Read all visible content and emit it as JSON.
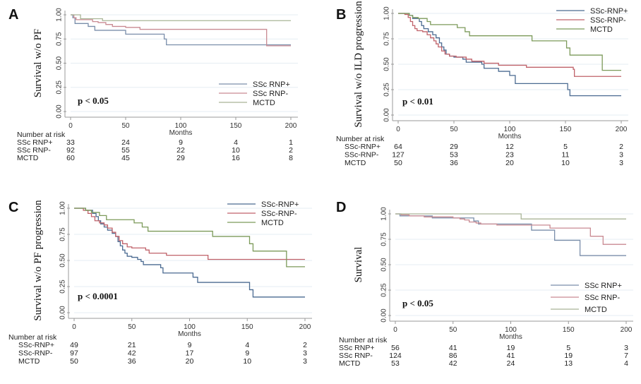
{
  "colors": {
    "SSc_RNP_pos": "#4a6a91",
    "SSc_RNP_neg": "#c0626a",
    "MCTD": "#7c9a5a",
    "A_pos": "#7a8eaa",
    "A_neg": "#c98a92",
    "A_mctd": "#a9b597"
  },
  "chart_data": [
    {
      "panel": "A",
      "type": "line",
      "subtype": "kaplan-meier",
      "title": "",
      "xlabel": "Months",
      "ylabel": "Survival w/o PF",
      "xlim": [
        0,
        200
      ],
      "ylim": [
        0,
        1
      ],
      "xticks": [
        "0",
        "50",
        "100",
        "150",
        "200"
      ],
      "yticks": [
        "0.00",
        "0.25",
        "0.50",
        "0.75",
        "1.00"
      ],
      "grid": true,
      "legend_position": "bottom-right",
      "annotation": "p < 0.05",
      "series": [
        {
          "name": "SSc RNP+",
          "color_key": "A_pos",
          "steps": [
            [
              0,
              1.0
            ],
            [
              2,
              0.97
            ],
            [
              4,
              0.91
            ],
            [
              16,
              0.88
            ],
            [
              22,
              0.84
            ],
            [
              50,
              0.8
            ],
            [
              85,
              0.75
            ],
            [
              87,
              0.69
            ],
            [
              200,
              0.69
            ]
          ]
        },
        {
          "name": "SSc RNP-",
          "color_key": "A_neg",
          "steps": [
            [
              0,
              1.0
            ],
            [
              3,
              0.97
            ],
            [
              5,
              0.95
            ],
            [
              20,
              0.93
            ],
            [
              25,
              0.92
            ],
            [
              32,
              0.9
            ],
            [
              38,
              0.88
            ],
            [
              50,
              0.87
            ],
            [
              63,
              0.85
            ],
            [
              178,
              0.85
            ],
            [
              178,
              0.68
            ],
            [
              200,
              0.68
            ]
          ]
        },
        {
          "name": "MCTD",
          "color_key": "A_mctd",
          "steps": [
            [
              0,
              1.0
            ],
            [
              9,
              0.96
            ],
            [
              29,
              0.94
            ],
            [
              200,
              0.94
            ]
          ]
        }
      ],
      "risk_table": {
        "title": "Number at risk",
        "times": [
          0,
          50,
          100,
          150,
          200
        ],
        "rows": [
          {
            "label": "SSc RNP+",
            "values": [
              "33",
              "24",
              "9",
              "4",
              "1"
            ]
          },
          {
            "label": "SSc RNP-",
            "values": [
              "92",
              "55",
              "22",
              "10",
              "2"
            ]
          },
          {
            "label": "MCTD",
            "values": [
              "60",
              "45",
              "29",
              "16",
              "8"
            ]
          }
        ]
      }
    },
    {
      "panel": "B",
      "type": "line",
      "subtype": "kaplan-meier",
      "title": "",
      "xlabel": "Months",
      "ylabel": "Survival w/o ILD progression",
      "xlim": [
        0,
        200
      ],
      "ylim": [
        0,
        1
      ],
      "xticks": [
        "0",
        "50",
        "100",
        "150",
        "200"
      ],
      "yticks": [
        "0.00",
        "0.25",
        "0.50",
        "0.75",
        "1.00"
      ],
      "grid": true,
      "legend_position": "top-right",
      "annotation": "p < 0.01",
      "series": [
        {
          "name": "SSc-RNP+",
          "color_key": "SSc_RNP_pos",
          "steps": [
            [
              0,
              1.0
            ],
            [
              10,
              0.98
            ],
            [
              13,
              0.95
            ],
            [
              19,
              0.92
            ],
            [
              21,
              0.88
            ],
            [
              23,
              0.85
            ],
            [
              27,
              0.82
            ],
            [
              31,
              0.79
            ],
            [
              34,
              0.76
            ],
            [
              37,
              0.71
            ],
            [
              39,
              0.67
            ],
            [
              41,
              0.64
            ],
            [
              43,
              0.6
            ],
            [
              46,
              0.58
            ],
            [
              50,
              0.57
            ],
            [
              58,
              0.55
            ],
            [
              61,
              0.52
            ],
            [
              75,
              0.5
            ],
            [
              77,
              0.46
            ],
            [
              90,
              0.43
            ],
            [
              100,
              0.39
            ],
            [
              105,
              0.31
            ],
            [
              152,
              0.25
            ],
            [
              154,
              0.19
            ],
            [
              200,
              0.19
            ]
          ]
        },
        {
          "name": "SSc-RNP-",
          "color_key": "SSc_RNP_neg",
          "steps": [
            [
              0,
              1.0
            ],
            [
              6,
              0.99
            ],
            [
              9,
              0.96
            ],
            [
              11,
              0.92
            ],
            [
              13,
              0.88
            ],
            [
              15,
              0.85
            ],
            [
              17,
              0.83
            ],
            [
              22,
              0.82
            ],
            [
              26,
              0.79
            ],
            [
              29,
              0.76
            ],
            [
              32,
              0.73
            ],
            [
              34,
              0.7
            ],
            [
              36,
              0.67
            ],
            [
              39,
              0.63
            ],
            [
              42,
              0.6
            ],
            [
              46,
              0.58
            ],
            [
              52,
              0.57
            ],
            [
              61,
              0.55
            ],
            [
              66,
              0.53
            ],
            [
              77,
              0.51
            ],
            [
              90,
              0.49
            ],
            [
              115,
              0.47
            ],
            [
              157,
              0.45
            ],
            [
              158,
              0.38
            ],
            [
              200,
              0.38
            ]
          ]
        },
        {
          "name": "MCTD",
          "color_key": "MCTD",
          "steps": [
            [
              0,
              1.0
            ],
            [
              10,
              0.98
            ],
            [
              13,
              0.96
            ],
            [
              18,
              0.95
            ],
            [
              26,
              0.92
            ],
            [
              29,
              0.89
            ],
            [
              53,
              0.86
            ],
            [
              60,
              0.82
            ],
            [
              64,
              0.78
            ],
            [
              120,
              0.73
            ],
            [
              151,
              0.66
            ],
            [
              154,
              0.59
            ],
            [
              183,
              0.44
            ],
            [
              200,
              0.44
            ]
          ]
        }
      ],
      "risk_table": {
        "title": "Number at risk",
        "times": [
          0,
          50,
          100,
          150,
          200
        ],
        "rows": [
          {
            "label": "SSc-RNP+",
            "values": [
              "64",
              "29",
              "12",
              "5",
              "2"
            ]
          },
          {
            "label": "SSc-RNP-",
            "values": [
              "127",
              "53",
              "23",
              "11",
              "3"
            ]
          },
          {
            "label": "MCTD",
            "values": [
              "50",
              "36",
              "20",
              "10",
              "3"
            ]
          }
        ]
      }
    },
    {
      "panel": "C",
      "type": "line",
      "subtype": "kaplan-meier",
      "title": "",
      "xlabel": "Months",
      "ylabel": "Survival w/o PF progression",
      "xlim": [
        0,
        200
      ],
      "ylim": [
        0,
        1
      ],
      "xticks": [
        "0",
        "50",
        "100",
        "150",
        "200"
      ],
      "yticks": [
        "0.00",
        "0.25",
        "0.50",
        "0.75",
        "1.00"
      ],
      "grid": true,
      "legend_position": "top-right",
      "annotation": "p < 0.0001",
      "series": [
        {
          "name": "SSc-RNP+",
          "color_key": "SSc_RNP_pos",
          "steps": [
            [
              0,
              1.0
            ],
            [
              10,
              0.98
            ],
            [
              16,
              0.95
            ],
            [
              19,
              0.92
            ],
            [
              21,
              0.88
            ],
            [
              23,
              0.85
            ],
            [
              26,
              0.82
            ],
            [
              29,
              0.79
            ],
            [
              33,
              0.76
            ],
            [
              36,
              0.73
            ],
            [
              38,
              0.68
            ],
            [
              40,
              0.64
            ],
            [
              42,
              0.6
            ],
            [
              44,
              0.57
            ],
            [
              46,
              0.54
            ],
            [
              50,
              0.53
            ],
            [
              55,
              0.51
            ],
            [
              58,
              0.49
            ],
            [
              60,
              0.46
            ],
            [
              75,
              0.43
            ],
            [
              77,
              0.38
            ],
            [
              103,
              0.34
            ],
            [
              107,
              0.29
            ],
            [
              152,
              0.22
            ],
            [
              155,
              0.15
            ],
            [
              200,
              0.15
            ]
          ]
        },
        {
          "name": "SSc-RNP-",
          "color_key": "SSc_RNP_neg",
          "steps": [
            [
              0,
              1.0
            ],
            [
              8,
              0.98
            ],
            [
              12,
              0.95
            ],
            [
              15,
              0.92
            ],
            [
              18,
              0.88
            ],
            [
              22,
              0.86
            ],
            [
              26,
              0.84
            ],
            [
              29,
              0.81
            ],
            [
              33,
              0.77
            ],
            [
              36,
              0.73
            ],
            [
              39,
              0.69
            ],
            [
              42,
              0.66
            ],
            [
              46,
              0.63
            ],
            [
              50,
              0.62
            ],
            [
              62,
              0.6
            ],
            [
              65,
              0.57
            ],
            [
              80,
              0.55
            ],
            [
              116,
              0.51
            ],
            [
              200,
              0.51
            ]
          ]
        },
        {
          "name": "MCTD",
          "color_key": "MCTD",
          "steps": [
            [
              0,
              1.0
            ],
            [
              10,
              0.98
            ],
            [
              15,
              0.96
            ],
            [
              22,
              0.93
            ],
            [
              28,
              0.89
            ],
            [
              52,
              0.86
            ],
            [
              59,
              0.82
            ],
            [
              64,
              0.78
            ],
            [
              120,
              0.73
            ],
            [
              152,
              0.66
            ],
            [
              155,
              0.59
            ],
            [
              184,
              0.44
            ],
            [
              200,
              0.44
            ]
          ]
        }
      ],
      "risk_table": {
        "title": "Number at risk",
        "times": [
          0,
          50,
          100,
          150,
          200
        ],
        "rows": [
          {
            "label": "SSc-RNP+",
            "values": [
              "49",
              "21",
              "9",
              "4",
              "2"
            ]
          },
          {
            "label": "SSc-RNP-",
            "values": [
              "97",
              "42",
              "17",
              "9",
              "3"
            ]
          },
          {
            "label": "MCTD",
            "values": [
              "50",
              "36",
              "20",
              "10",
              "3"
            ]
          }
        ]
      }
    },
    {
      "panel": "D",
      "type": "line",
      "subtype": "kaplan-meier",
      "title": "",
      "xlabel": "Months",
      "ylabel": "Survival",
      "xlim": [
        0,
        200
      ],
      "ylim": [
        0,
        1
      ],
      "xticks": [
        "0",
        "50",
        "100",
        "150",
        "200"
      ],
      "yticks": [
        "0.00",
        "0.25",
        "0.50",
        "0.75",
        "1.00"
      ],
      "grid": true,
      "legend_position": "bottom-right",
      "annotation": "p < 0.05",
      "series": [
        {
          "name": "SSc RNP+",
          "color_key": "A_pos",
          "steps": [
            [
              0,
              1.0
            ],
            [
              4,
              0.98
            ],
            [
              32,
              0.96
            ],
            [
              68,
              0.93
            ],
            [
              72,
              0.9
            ],
            [
              118,
              0.84
            ],
            [
              138,
              0.74
            ],
            [
              160,
              0.59
            ],
            [
              200,
              0.59
            ]
          ]
        },
        {
          "name": "SSc RNP-",
          "color_key": "A_neg",
          "steps": [
            [
              0,
              1.0
            ],
            [
              5,
              0.99
            ],
            [
              12,
              0.98
            ],
            [
              25,
              0.97
            ],
            [
              50,
              0.96
            ],
            [
              56,
              0.95
            ],
            [
              60,
              0.94
            ],
            [
              64,
              0.92
            ],
            [
              70,
              0.91
            ],
            [
              74,
              0.9
            ],
            [
              88,
              0.89
            ],
            [
              134,
              0.86
            ],
            [
              169,
              0.78
            ],
            [
              180,
              0.7
            ],
            [
              200,
              0.7
            ]
          ]
        },
        {
          "name": "MCTD",
          "color_key": "A_mctd",
          "steps": [
            [
              0,
              1.0
            ],
            [
              109,
              0.95
            ],
            [
              200,
              0.95
            ]
          ]
        }
      ],
      "risk_table": {
        "title": "Number at risk",
        "times": [
          0,
          50,
          100,
          150,
          200
        ],
        "rows": [
          {
            "label": "SSc RNP+",
            "values": [
              "56",
              "41",
              "19",
              "5",
              "3"
            ]
          },
          {
            "label": "SSc RNP-",
            "values": [
              "124",
              "86",
              "41",
              "19",
              "7"
            ]
          },
          {
            "label": "MCTD",
            "values": [
              "53",
              "42",
              "24",
              "13",
              "4"
            ]
          }
        ]
      }
    }
  ]
}
